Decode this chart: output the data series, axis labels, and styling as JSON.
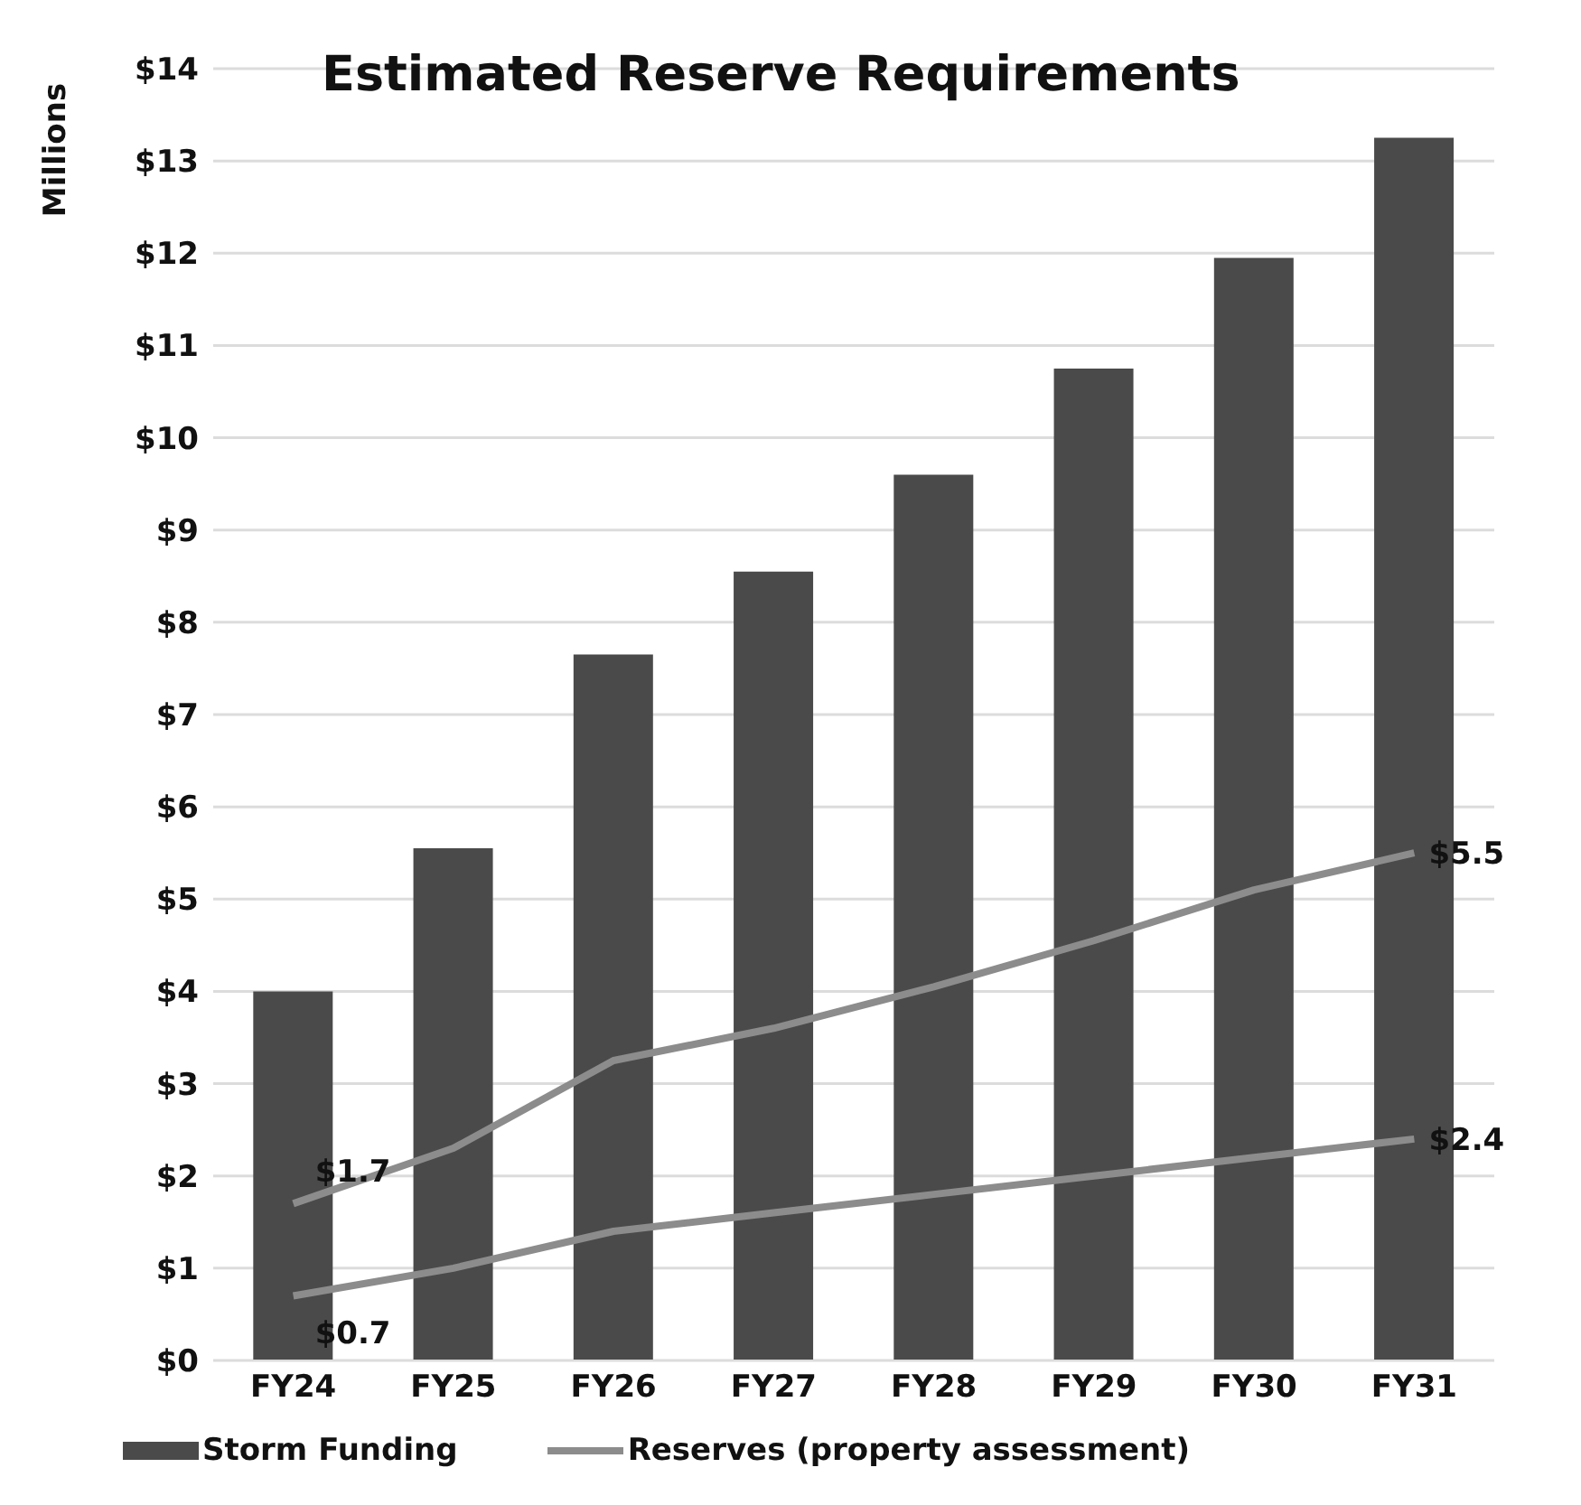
{
  "chart_data": {
    "type": "bar",
    "title": "Estimated Reserve Requirements",
    "ylabel": "Millions",
    "categories": [
      "FY24",
      "FY25",
      "FY26",
      "FY27",
      "FY28",
      "FY29",
      "FY30",
      "FY31"
    ],
    "series": [
      {
        "name": "Storm Funding",
        "color": "#4a4a4a",
        "values": [
          4.0,
          5.55,
          7.65,
          8.55,
          9.6,
          10.75,
          11.95,
          13.25
        ]
      },
      {
        "name": "Reserves (property assessment)",
        "type": "line",
        "color": "#8c8c8c",
        "values": [
          1.7,
          2.3,
          3.25,
          3.6,
          4.05,
          4.55,
          5.1,
          5.5
        ],
        "value_labels": [
          "$1.7",
          null,
          null,
          null,
          null,
          null,
          null,
          "$5.5"
        ]
      },
      {
        "type": "line",
        "color": "#8c8c8c",
        "values": [
          0.7,
          1.0,
          1.4,
          1.6,
          1.8,
          2.0,
          2.2,
          2.4
        ],
        "value_labels": [
          "$0.7",
          null,
          null,
          null,
          null,
          null,
          null,
          "$2.4"
        ]
      }
    ],
    "ylim": [
      0,
      14
    ],
    "yticks": [
      {
        "value": 0,
        "label": "$0"
      },
      {
        "value": 1,
        "label": "$1"
      },
      {
        "value": 2,
        "label": "$2"
      },
      {
        "value": 3,
        "label": "$3"
      },
      {
        "value": 4,
        "label": "$4"
      },
      {
        "value": 5,
        "label": "$5"
      },
      {
        "value": 6,
        "label": "$6"
      },
      {
        "value": 7,
        "label": "$7"
      },
      {
        "value": 8,
        "label": "$8"
      },
      {
        "value": 9,
        "label": "$9"
      },
      {
        "value": 10,
        "label": "$10"
      },
      {
        "value": 11,
        "label": "$11"
      },
      {
        "value": 12,
        "label": "$12"
      },
      {
        "value": 13,
        "label": "$13"
      },
      {
        "value": 14,
        "label": "$14"
      }
    ],
    "grid": "y",
    "legend": "bottom",
    "marker": "none",
    "line_style": "solid"
  }
}
